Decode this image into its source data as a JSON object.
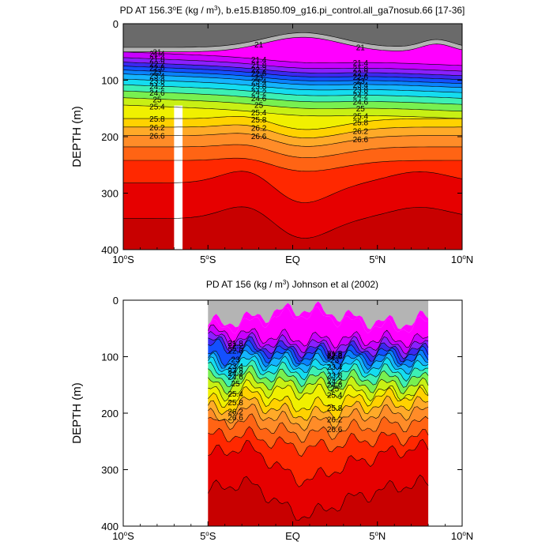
{
  "chart_data": [
    {
      "type": "contour",
      "title_prefix": "PD AT 156.3",
      "title_deg": "o",
      "title_mid": "E (kg / m",
      "title_sup": "3",
      "title_suffix": "), b.e15.B1850.f09_g16.pi_control.all_ga7nosub.66 [17-36]",
      "ylabel": "DEPTH (m)",
      "ylim": [
        400,
        0
      ],
      "xlim": [
        -10,
        10
      ],
      "yticks": [
        "0",
        "100",
        "200",
        "300",
        "400"
      ],
      "xticks": [
        "10",
        "5",
        "EQ",
        "5",
        "10"
      ],
      "xtick_suffix": [
        "S",
        "S",
        "",
        "N",
        "N"
      ],
      "levels": [
        21,
        21.4,
        21.8,
        22.2,
        22.6,
        23,
        23.4,
        23.8,
        24.2,
        24.6,
        25,
        25.4,
        25.8,
        26.2,
        26.6
      ],
      "contour_labels": [
        "21",
        "21.4",
        "21.8",
        "22.2",
        "22.6",
        "23",
        "23.4",
        "23.8",
        "24.2",
        "24.6",
        "25",
        "25.4",
        "25.8",
        "26.2",
        "26.6"
      ],
      "data_x_range": [
        -10,
        10
      ],
      "missing_column_x": [
        -7.0,
        -6.5
      ],
      "missing_column_depth_from": 145
    },
    {
      "type": "contour",
      "title": "PD AT 156 (kg / m",
      "title_sup": "3",
      "title_suffix": ") Johnson et al (2002)",
      "ylabel": "DEPTH (m)",
      "ylim": [
        400,
        0
      ],
      "xlim": [
        -10,
        10
      ],
      "yticks": [
        "0",
        "100",
        "200",
        "300",
        "400"
      ],
      "xticks": [
        "10",
        "5",
        "EQ",
        "5",
        "10"
      ],
      "xtick_suffix": [
        "S",
        "S",
        "",
        "N",
        "N"
      ],
      "levels": [
        21.8,
        22.2,
        22.6,
        23,
        23.4,
        23.8,
        24.2,
        24.6,
        25,
        25.4,
        25.8,
        26.2,
        26.6
      ],
      "contour_labels": [
        "21.8",
        "22.2",
        "22.6",
        "23",
        "23.4",
        "23.8",
        "24.2",
        "24.6",
        "25",
        "25.4",
        "25.8",
        "26.2",
        "26.6"
      ],
      "data_x_range": [
        -5,
        8
      ]
    }
  ]
}
